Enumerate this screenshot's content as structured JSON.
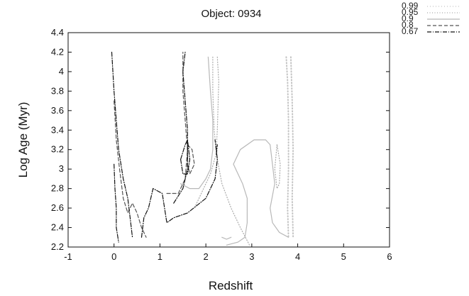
{
  "chart_data": {
    "type": "line",
    "title": "Object: 0934",
    "xlabel": "Redshift",
    "ylabel": "Log Age (Myr)",
    "xlim": [
      -1,
      5
    ],
    "ylim": [
      2.2,
      4.4
    ],
    "xticks": [
      "-1",
      "0",
      "1",
      "2",
      "3",
      "4",
      "5",
      "6"
    ],
    "yticks": [
      "2.2",
      "2.4",
      "2.6",
      "2.8",
      "3",
      "3.2",
      "3.4",
      "3.6",
      "3.8",
      "4",
      "4.2",
      "4.4"
    ],
    "legend_position": "top-right",
    "grid": false,
    "series": [
      {
        "name": "0.99",
        "style": "dotted-light",
        "color": "#c4c4c4",
        "segments": [
          [
            [
              3.75,
              4.15
            ],
            [
              3.78,
              3.9
            ],
            [
              3.8,
              3.5
            ],
            [
              3.8,
              3.0
            ],
            [
              3.78,
              2.6
            ],
            [
              3.8,
              2.3
            ]
          ],
          [
            [
              3.85,
              4.15
            ],
            [
              3.88,
              3.7
            ],
            [
              3.9,
              3.2
            ],
            [
              3.88,
              2.7
            ],
            [
              3.9,
              2.3
            ]
          ]
        ]
      },
      {
        "name": "0.95",
        "style": "dotted",
        "color": "#a8a8a8",
        "segments": [
          [
            [
              2.15,
              4.15
            ],
            [
              2.15,
              3.8
            ],
            [
              2.18,
              3.4
            ],
            [
              2.25,
              3.1
            ],
            [
              2.35,
              2.85
            ],
            [
              2.55,
              2.6
            ],
            [
              2.75,
              2.4
            ],
            [
              2.95,
              2.22
            ]
          ],
          [
            [
              2.25,
              4.15
            ],
            [
              2.28,
              3.9
            ],
            [
              2.25,
              3.4
            ],
            [
              2.22,
              3.15
            ],
            [
              2.1,
              2.95
            ],
            [
              1.9,
              2.75
            ],
            [
              1.75,
              2.6
            ]
          ],
          [
            [
              3.55,
              3.25
            ],
            [
              3.5,
              3.0
            ],
            [
              3.55,
              2.8
            ],
            [
              3.6,
              2.85
            ],
            [
              3.62,
              3.05
            ],
            [
              3.55,
              3.25
            ]
          ]
        ]
      },
      {
        "name": "0.9",
        "style": "solid-light",
        "color": "#b8b8b8",
        "segments": [
          [
            [
              2.45,
              2.22
            ],
            [
              2.7,
              2.25
            ],
            [
              2.85,
              2.3
            ],
            [
              2.9,
              2.45
            ],
            [
              2.9,
              2.7
            ],
            [
              2.8,
              2.85
            ],
            [
              2.7,
              2.95
            ],
            [
              2.6,
              3.05
            ],
            [
              2.75,
              3.2
            ],
            [
              3.05,
              3.3
            ],
            [
              3.3,
              3.3
            ],
            [
              3.4,
              3.25
            ],
            [
              3.45,
              3.05
            ],
            [
              3.5,
              2.85
            ],
            [
              3.4,
              2.6
            ],
            [
              3.45,
              2.45
            ],
            [
              3.6,
              2.35
            ],
            [
              3.8,
              2.3
            ]
          ],
          [
            [
              1.45,
              2.85
            ],
            [
              1.65,
              2.8
            ],
            [
              1.85,
              2.8
            ],
            [
              2.0,
              2.9
            ],
            [
              2.1,
              3.0
            ],
            [
              2.15,
              3.2
            ],
            [
              2.15,
              3.5
            ],
            [
              2.1,
              3.8
            ],
            [
              2.05,
              4.15
            ]
          ],
          [
            [
              2.35,
              2.3
            ],
            [
              2.45,
              2.28
            ],
            [
              2.55,
              2.3
            ]
          ]
        ]
      },
      {
        "name": "0.8",
        "style": "dashed",
        "color": "#555555",
        "segments": [
          [
            [
              0.0,
              3.7
            ],
            [
              0.05,
              3.3
            ],
            [
              0.12,
              3.0
            ],
            [
              0.2,
              2.7
            ],
            [
              0.3,
              2.55
            ],
            [
              0.4,
              2.65
            ],
            [
              0.5,
              2.55
            ],
            [
              0.6,
              2.4
            ],
            [
              0.7,
              2.3
            ]
          ],
          [
            [
              1.15,
              2.75
            ],
            [
              1.4,
              2.75
            ],
            [
              1.55,
              2.9
            ],
            [
              1.6,
              3.2
            ],
            [
              1.55,
              3.5
            ],
            [
              1.5,
              3.8
            ],
            [
              1.5,
              4.2
            ]
          ],
          [
            [
              1.6,
              3.25
            ],
            [
              1.7,
              3.2
            ],
            [
              1.75,
              3.05
            ],
            [
              1.65,
              2.95
            ],
            [
              1.6,
              3.05
            ],
            [
              1.6,
              3.25
            ]
          ]
        ]
      },
      {
        "name": "0.67",
        "style": "dash-dot",
        "color": "#111111",
        "segments": [
          [
            [
              -0.05,
              4.2
            ],
            [
              0.0,
              3.8
            ],
            [
              0.05,
              3.5
            ],
            [
              0.1,
              3.2
            ],
            [
              0.2,
              2.9
            ],
            [
              0.3,
              2.7
            ],
            [
              0.35,
              2.5
            ],
            [
              0.4,
              2.3
            ]
          ],
          [
            [
              0.0,
              3.05
            ],
            [
              0.02,
              2.8
            ],
            [
              0.05,
              2.6
            ],
            [
              0.05,
              2.4
            ],
            [
              0.1,
              2.25
            ]
          ],
          [
            [
              0.6,
              2.3
            ],
            [
              0.65,
              2.5
            ],
            [
              0.75,
              2.6
            ],
            [
              0.8,
              2.7
            ],
            [
              0.85,
              2.8
            ],
            [
              1.05,
              2.75
            ],
            [
              1.1,
              2.6
            ],
            [
              1.15,
              2.45
            ],
            [
              1.3,
              2.5
            ],
            [
              1.6,
              2.55
            ],
            [
              2.0,
              2.7
            ],
            [
              2.2,
              2.9
            ],
            [
              2.25,
              3.1
            ],
            [
              2.2,
              3.3
            ]
          ],
          [
            [
              1.3,
              2.65
            ],
            [
              1.5,
              2.8
            ],
            [
              1.6,
              3.0
            ],
            [
              1.6,
              3.4
            ],
            [
              1.55,
              3.7
            ],
            [
              1.5,
              4.0
            ],
            [
              1.55,
              4.2
            ]
          ],
          [
            [
              1.45,
              3.1
            ],
            [
              1.55,
              3.25
            ],
            [
              1.6,
              3.3
            ],
            [
              1.65,
              3.1
            ],
            [
              1.6,
              2.95
            ],
            [
              1.5,
              2.95
            ],
            [
              1.45,
              3.1
            ]
          ],
          [
            [
              2.23,
              3.15
            ],
            [
              2.25,
              3.25
            ]
          ]
        ]
      }
    ]
  }
}
